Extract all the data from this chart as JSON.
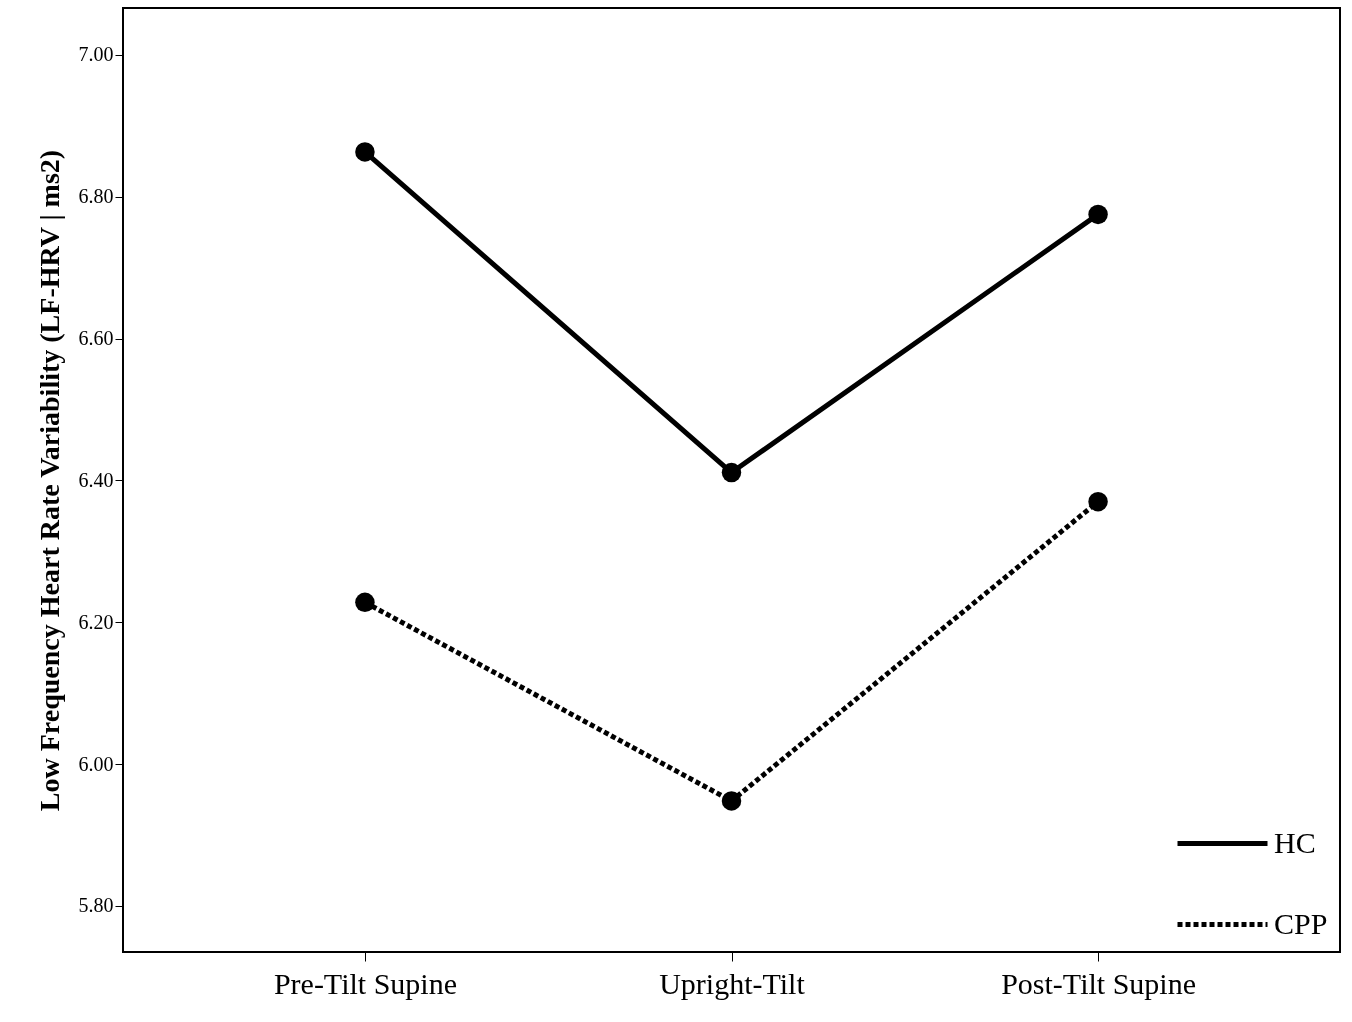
{
  "chart_data": {
    "type": "line",
    "ylabel": "Low Frequency Heart Rate Variability (LF-HRV | ms2)",
    "categories": [
      "Pre-Tilt Supine",
      "Upright-Tilt",
      "Post-Tilt Supine"
    ],
    "series": [
      {
        "name": "HC",
        "color": "#000000",
        "line_style": "solid",
        "values": [
          6.863,
          6.411,
          6.775
        ]
      },
      {
        "name": "CPP",
        "color": "#000000",
        "line_style": "dotted",
        "values": [
          6.228,
          5.948,
          6.37
        ]
      }
    ],
    "ylim": [
      5.735,
      7.066
    ],
    "yticks": [
      {
        "value": 5.8,
        "label": "5.80"
      },
      {
        "value": 6.0,
        "label": "6.00"
      },
      {
        "value": 6.2,
        "label": "6.20"
      },
      {
        "value": 6.4,
        "label": "6.40"
      },
      {
        "value": 6.6,
        "label": "6.60"
      },
      {
        "value": 6.8,
        "label": "6.80"
      },
      {
        "value": 7.0,
        "label": "7.00"
      }
    ],
    "grid": false,
    "legend": "bottom right",
    "marker": "circle"
  }
}
